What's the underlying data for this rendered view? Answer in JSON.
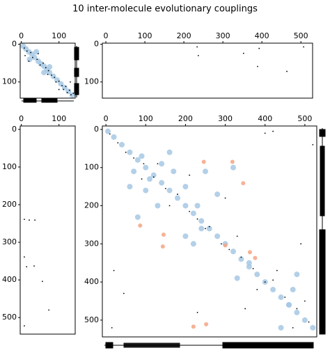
{
  "title": "10 inter-molecule evolutionary couplings",
  "chart_data": [
    {
      "type": "scatter",
      "xlim": [
        -3,
        143
      ],
      "ylim": [
        143,
        -3
      ],
      "xticks": [
        0,
        100
      ],
      "yticks": [
        0,
        100
      ],
      "series": [
        {
          "color": "#a6c8e4",
          "x": [
            5,
            12,
            20,
            28,
            35,
            45,
            52,
            60,
            68,
            75,
            85,
            95,
            105,
            115,
            125,
            135,
            22,
            40,
            60,
            75
          ],
          "values": [
            5,
            12,
            20,
            26,
            35,
            45,
            52,
            58,
            68,
            75,
            85,
            95,
            105,
            115,
            125,
            135,
            40,
            20,
            75,
            60
          ]
        },
        {
          "color": "#000000",
          "x": [
            8,
            15,
            25,
            30,
            42,
            50,
            58,
            65,
            72,
            80,
            88,
            92,
            100,
            108,
            112,
            118,
            122,
            128,
            132,
            138,
            20,
            45,
            70,
            100,
            130,
            10
          ],
          "values": [
            10,
            18,
            22,
            35,
            40,
            55,
            50,
            62,
            70,
            82,
            88,
            100,
            98,
            110,
            120,
            112,
            128,
            122,
            134,
            130,
            45,
            25,
            80,
            120,
            100,
            30
          ]
        }
      ]
    },
    {
      "type": "scatter",
      "xlim": [
        -9,
        530
      ],
      "ylim": [
        143,
        -3
      ],
      "xticks": [
        0,
        100,
        200,
        300,
        400,
        500
      ],
      "yticks": [
        0,
        100
      ],
      "series": [
        {
          "color": "#000000",
          "x": [
            234,
            237,
            353,
            393,
            389,
            507,
            464
          ],
          "values": [
            7,
            30,
            24,
            11,
            59,
            7,
            72
          ]
        }
      ]
    },
    {
      "type": "scatter",
      "xlim": [
        -3,
        143
      ],
      "ylim": [
        544,
        -9
      ],
      "xticks": [
        0,
        100
      ],
      "yticks": [
        0,
        100,
        200,
        300,
        400,
        500
      ],
      "series": [
        {
          "color": "#000000",
          "x": [
            8,
            21,
            36,
            8,
            14,
            34,
            56,
            73,
            8
          ],
          "values": [
            239,
            241,
            241,
            339,
            365,
            363,
            404,
            480,
            522
          ]
        }
      ]
    },
    {
      "type": "scatter",
      "xlim": [
        -9,
        530
      ],
      "ylim": [
        544,
        -9
      ],
      "xticks": [
        0,
        100,
        200,
        300,
        400,
        500
      ],
      "yticks": [
        0,
        100,
        200,
        300,
        400,
        500
      ],
      "series": [
        {
          "color": "#a6c8e4",
          "x": [
            5,
            20,
            40,
            60,
            80,
            100,
            120,
            140,
            160,
            180,
            200,
            220,
            240,
            260,
            280,
            300,
            320,
            340,
            360,
            380,
            400,
            420,
            440,
            460,
            480,
            500,
            520,
            70,
            90,
            110,
            140,
            170,
            100,
            130,
            160,
            60,
            80,
            200,
            230,
            250,
            280,
            320,
            440,
            460,
            470,
            480,
            330,
            360,
            200,
            220,
            240
          ],
          "values": [
            5,
            20,
            40,
            60,
            80,
            100,
            120,
            140,
            160,
            180,
            200,
            220,
            240,
            260,
            280,
            300,
            320,
            340,
            360,
            380,
            400,
            420,
            440,
            460,
            480,
            500,
            520,
            110,
            70,
            130,
            90,
            110,
            160,
            200,
            60,
            150,
            230,
            150,
            200,
            110,
            170,
            100,
            520,
            460,
            420,
            380,
            390,
            350,
            280,
            300,
            260
          ]
        },
        {
          "color": "#f4a582",
          "x": [
            246,
            318,
            345,
            86,
            145,
            143,
            300,
            362,
            375,
            220,
            252
          ],
          "values": [
            85,
            85,
            141,
            252,
            276,
            307,
            304,
            322,
            337,
            517,
            511
          ]
        },
        {
          "color": "#000000",
          "x": [
            10,
            30,
            50,
            70,
            95,
            120,
            150,
            180,
            210,
            230,
            260,
            290,
            310,
            340,
            370,
            400,
            420,
            450,
            480,
            510,
            90,
            130,
            160,
            210,
            250,
            300,
            330,
            380,
            430,
            470,
            500,
            20,
            45,
            400,
            420,
            520,
            15,
            490,
            350,
            230
          ],
          "values": [
            12,
            35,
            60,
            75,
            90,
            125,
            155,
            170,
            215,
            235,
            255,
            300,
            315,
            335,
            365,
            400,
            395,
            440,
            470,
            505,
            130,
            90,
            200,
            120,
            260,
            180,
            280,
            420,
            370,
            520,
            450,
            370,
            430,
            10,
            5,
            40,
            520,
            300,
            470,
            480
          ]
        }
      ]
    }
  ]
}
